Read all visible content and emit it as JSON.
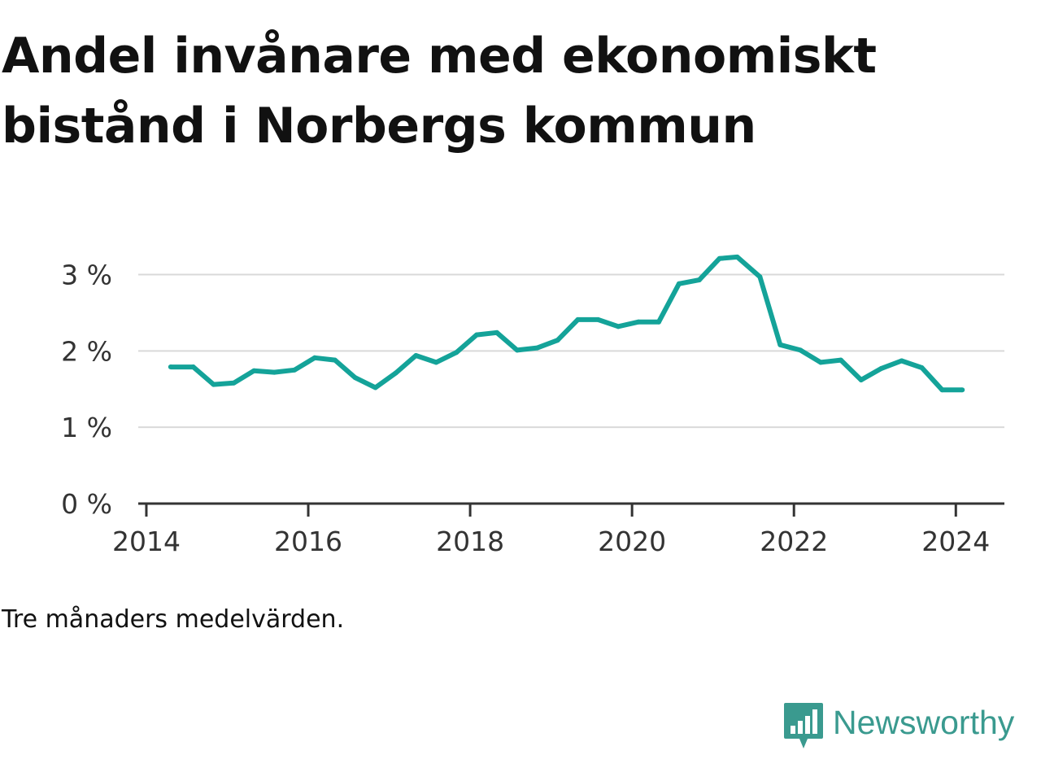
{
  "title": "Andel invånare med ekonomiskt bistånd i Norbergs kommun",
  "note": "Tre månaders medelvärden.",
  "brand": {
    "name": "Newsworthy",
    "icon": "bar-chart-speech-bubble-icon",
    "color": "#3a9a8f"
  },
  "colors": {
    "line": "#14a399",
    "grid": "#d9d9d9",
    "axis": "#333333"
  },
  "chart_data": {
    "type": "line",
    "title": "Andel invånare med ekonomiskt bistånd i Norbergs kommun",
    "xlabel": "",
    "ylabel": "",
    "xlim": [
      2013.9,
      2024.6
    ],
    "ylim": [
      0,
      3.4
    ],
    "x_ticks": [
      2014,
      2016,
      2018,
      2020,
      2022,
      2024
    ],
    "x_tick_labels": [
      "2014",
      "2016",
      "2018",
      "2020",
      "2022",
      "2024"
    ],
    "y_ticks": [
      0,
      1,
      2,
      3
    ],
    "y_tick_labels": [
      "0 %",
      "1 %",
      "2 %",
      "3 %"
    ],
    "grid": true,
    "legend": "none",
    "series": [
      {
        "x": [
          2014.3,
          2014.58,
          2014.83,
          2015.08,
          2015.33,
          2015.58,
          2015.83,
          2016.08,
          2016.33,
          2016.58,
          2016.83,
          2017.08,
          2017.33,
          2017.58,
          2017.83,
          2018.08,
          2018.33,
          2018.58,
          2018.83,
          2019.08,
          2019.33,
          2019.58,
          2019.83,
          2020.08,
          2020.33,
          2020.58,
          2020.83,
          2021.08,
          2021.3,
          2021.58,
          2021.83,
          2022.08,
          2022.33,
          2022.58,
          2022.83,
          2023.08,
          2023.33,
          2023.58,
          2023.83,
          2024.08
        ],
        "values": [
          1.79,
          1.79,
          1.56,
          1.58,
          1.74,
          1.72,
          1.75,
          1.91,
          1.88,
          1.65,
          1.52,
          1.71,
          1.94,
          1.85,
          1.98,
          2.21,
          2.24,
          2.01,
          2.04,
          2.14,
          2.41,
          2.41,
          2.32,
          2.38,
          2.38,
          2.88,
          2.93,
          3.21,
          3.23,
          2.97,
          2.08,
          2.01,
          1.85,
          1.88,
          1.62,
          1.77,
          1.87,
          1.78,
          1.49,
          1.49
        ]
      }
    ]
  }
}
